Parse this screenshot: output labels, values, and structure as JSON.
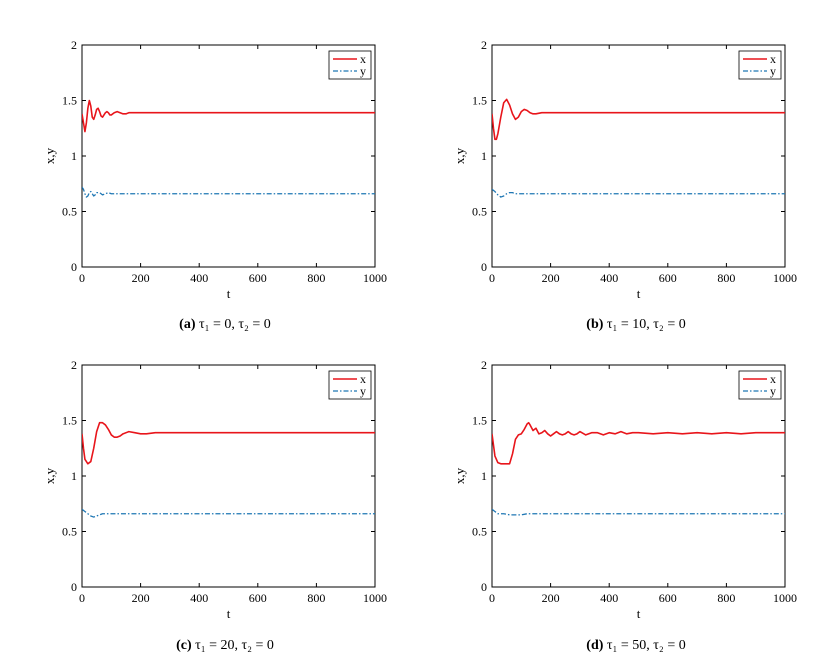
{
  "colors": {
    "x_series": "#e8151b",
    "y_series": "#1f77b4",
    "axis": "#000000"
  },
  "chart_data": [
    {
      "id": "a",
      "type": "line",
      "xlabel": "t",
      "ylabel": "x,y",
      "xlim": [
        0,
        1000
      ],
      "ylim": [
        0,
        2
      ],
      "xticks": [
        "0",
        "200",
        "400",
        "600",
        "800",
        "1000"
      ],
      "yticks": [
        "0",
        "0.5",
        "1",
        "1.5",
        "2"
      ],
      "legend": [
        "x",
        "y"
      ],
      "legend_position": "top-right",
      "caption": {
        "letter": "(a)",
        "text": "τ₁ = 0, τ₂ = 0"
      },
      "series": [
        {
          "name": "x",
          "style": "solid",
          "x": [
            0,
            5,
            10,
            15,
            20,
            25,
            30,
            35,
            40,
            45,
            50,
            55,
            60,
            65,
            70,
            75,
            80,
            85,
            90,
            95,
            100,
            110,
            120,
            130,
            140,
            150,
            160,
            180,
            200,
            250,
            300,
            400,
            600,
            800,
            1000
          ],
          "values": [
            1.38,
            1.3,
            1.22,
            1.3,
            1.43,
            1.5,
            1.45,
            1.35,
            1.33,
            1.37,
            1.42,
            1.43,
            1.4,
            1.36,
            1.35,
            1.37,
            1.39,
            1.4,
            1.39,
            1.37,
            1.37,
            1.39,
            1.4,
            1.39,
            1.38,
            1.38,
            1.39,
            1.39,
            1.39,
            1.39,
            1.39,
            1.39,
            1.39,
            1.39,
            1.39
          ]
        },
        {
          "name": "y",
          "style": "dashdot",
          "x": [
            0,
            5,
            10,
            15,
            20,
            25,
            30,
            35,
            40,
            45,
            50,
            60,
            70,
            80,
            90,
            100,
            120,
            150,
            200,
            300,
            500,
            700,
            1000
          ],
          "values": [
            0.72,
            0.7,
            0.66,
            0.63,
            0.64,
            0.67,
            0.68,
            0.66,
            0.64,
            0.65,
            0.67,
            0.67,
            0.65,
            0.66,
            0.67,
            0.66,
            0.66,
            0.66,
            0.66,
            0.66,
            0.66,
            0.66,
            0.66
          ]
        }
      ]
    },
    {
      "id": "b",
      "type": "line",
      "xlabel": "t",
      "ylabel": "x,y",
      "xlim": [
        0,
        1000
      ],
      "ylim": [
        0,
        2
      ],
      "xticks": [
        "0",
        "200",
        "400",
        "600",
        "800",
        "1000"
      ],
      "yticks": [
        "0",
        "0.5",
        "1",
        "1.5",
        "2"
      ],
      "legend": [
        "x",
        "y"
      ],
      "legend_position": "top-right",
      "caption": {
        "letter": "(b)",
        "text": "τ₁ = 10, τ₂ = 0"
      },
      "series": [
        {
          "name": "x",
          "style": "solid",
          "x": [
            0,
            5,
            10,
            15,
            20,
            30,
            40,
            50,
            60,
            70,
            80,
            90,
            100,
            110,
            120,
            130,
            140,
            150,
            170,
            200,
            250,
            300,
            400,
            600,
            800,
            1000
          ],
          "values": [
            1.38,
            1.25,
            1.15,
            1.15,
            1.2,
            1.35,
            1.48,
            1.51,
            1.46,
            1.38,
            1.33,
            1.35,
            1.4,
            1.42,
            1.41,
            1.39,
            1.38,
            1.38,
            1.39,
            1.39,
            1.39,
            1.39,
            1.39,
            1.39,
            1.39,
            1.39
          ]
        },
        {
          "name": "y",
          "style": "dashdot",
          "x": [
            0,
            10,
            20,
            30,
            40,
            50,
            60,
            70,
            80,
            100,
            150,
            200,
            300,
            500,
            700,
            1000
          ],
          "values": [
            0.7,
            0.68,
            0.65,
            0.63,
            0.64,
            0.66,
            0.67,
            0.67,
            0.66,
            0.66,
            0.66,
            0.66,
            0.66,
            0.66,
            0.66,
            0.66
          ]
        }
      ]
    },
    {
      "id": "c",
      "type": "line",
      "xlabel": "t",
      "ylabel": "x,y",
      "xlim": [
        0,
        1000
      ],
      "ylim": [
        0,
        2
      ],
      "xticks": [
        "0",
        "200",
        "400",
        "600",
        "800",
        "1000"
      ],
      "yticks": [
        "0",
        "0.5",
        "1",
        "1.5",
        "2"
      ],
      "legend": [
        "x",
        "y"
      ],
      "legend_position": "top-right",
      "caption": {
        "letter": "(c)",
        "text": "τ₁ = 20, τ₂ = 0"
      },
      "series": [
        {
          "name": "x",
          "style": "solid",
          "x": [
            0,
            5,
            10,
            20,
            30,
            40,
            50,
            60,
            70,
            80,
            90,
            100,
            110,
            120,
            130,
            140,
            160,
            180,
            200,
            220,
            250,
            300,
            400,
            600,
            800,
            1000
          ],
          "values": [
            1.38,
            1.25,
            1.15,
            1.11,
            1.13,
            1.25,
            1.4,
            1.48,
            1.48,
            1.46,
            1.42,
            1.37,
            1.35,
            1.35,
            1.36,
            1.38,
            1.4,
            1.39,
            1.38,
            1.38,
            1.39,
            1.39,
            1.39,
            1.39,
            1.39,
            1.39
          ]
        },
        {
          "name": "y",
          "style": "dashdot",
          "x": [
            0,
            10,
            20,
            30,
            40,
            50,
            60,
            70,
            80,
            100,
            120,
            150,
            200,
            300,
            500,
            700,
            1000
          ],
          "values": [
            0.7,
            0.68,
            0.66,
            0.64,
            0.63,
            0.64,
            0.65,
            0.66,
            0.66,
            0.66,
            0.66,
            0.66,
            0.66,
            0.66,
            0.66,
            0.66,
            0.66
          ]
        }
      ]
    },
    {
      "id": "d",
      "type": "line",
      "xlabel": "t",
      "ylabel": "x,y",
      "xlim": [
        0,
        1000
      ],
      "ylim": [
        0,
        2
      ],
      "xticks": [
        "0",
        "200",
        "400",
        "600",
        "800",
        "1000"
      ],
      "yticks": [
        "0",
        "0.5",
        "1",
        "1.5",
        "2"
      ],
      "legend": [
        "x",
        "y"
      ],
      "legend_position": "top-right",
      "caption": {
        "letter": "(d)",
        "text": "τ₁ = 50, τ₂ = 0"
      },
      "series": [
        {
          "name": "x",
          "style": "solid",
          "x": [
            0,
            5,
            10,
            20,
            30,
            40,
            50,
            60,
            70,
            80,
            90,
            100,
            110,
            120,
            125,
            130,
            140,
            150,
            160,
            170,
            180,
            190,
            200,
            210,
            220,
            230,
            240,
            250,
            260,
            270,
            280,
            290,
            300,
            320,
            340,
            360,
            380,
            400,
            420,
            440,
            460,
            480,
            500,
            550,
            600,
            650,
            700,
            750,
            800,
            850,
            900,
            950,
            1000
          ],
          "values": [
            1.38,
            1.28,
            1.18,
            1.12,
            1.11,
            1.11,
            1.11,
            1.11,
            1.2,
            1.33,
            1.37,
            1.38,
            1.42,
            1.47,
            1.48,
            1.46,
            1.41,
            1.43,
            1.38,
            1.39,
            1.41,
            1.38,
            1.36,
            1.38,
            1.4,
            1.38,
            1.37,
            1.38,
            1.4,
            1.38,
            1.37,
            1.38,
            1.4,
            1.37,
            1.39,
            1.39,
            1.37,
            1.39,
            1.38,
            1.4,
            1.38,
            1.39,
            1.39,
            1.38,
            1.39,
            1.38,
            1.39,
            1.38,
            1.39,
            1.38,
            1.39,
            1.39,
            1.39
          ]
        },
        {
          "name": "y",
          "style": "dashdot",
          "x": [
            0,
            10,
            20,
            40,
            60,
            80,
            100,
            120,
            150,
            200,
            300,
            500,
            700,
            1000
          ],
          "values": [
            0.7,
            0.68,
            0.66,
            0.66,
            0.65,
            0.65,
            0.65,
            0.66,
            0.66,
            0.66,
            0.66,
            0.66,
            0.66,
            0.66
          ]
        }
      ]
    }
  ]
}
